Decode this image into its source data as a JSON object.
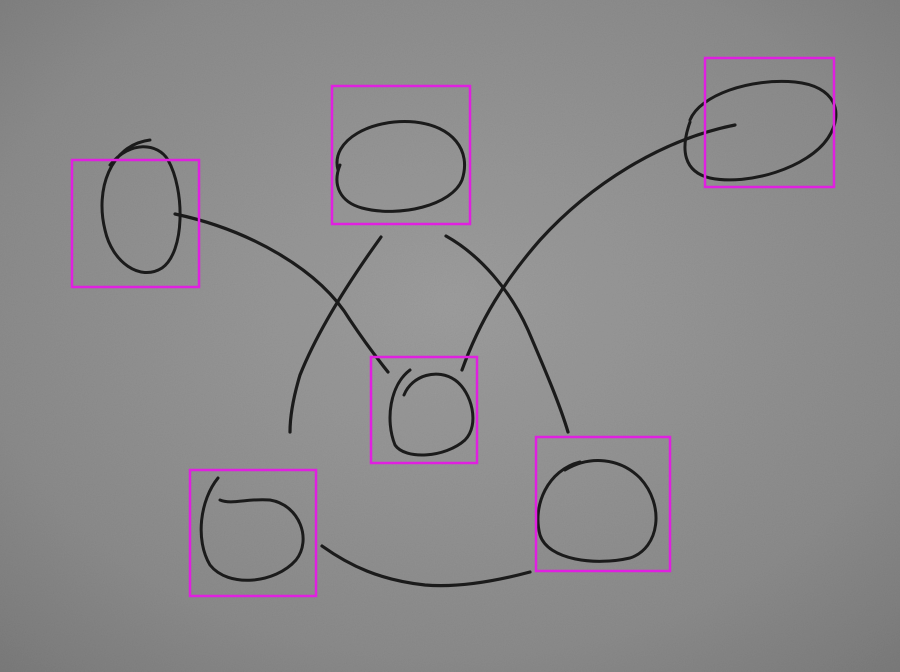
{
  "diagram": {
    "kind": "hand-drawn node sketch",
    "node_count": 6,
    "edge_count": 6
  },
  "colors": {
    "paper": "#8f8f8f",
    "ink": "#1b1b1b",
    "annotation_box": "#e020e0"
  },
  "annotations": {
    "box_label": "",
    "box_count": 6
  },
  "nodes": [
    {
      "id": "n-left",
      "shape": "ellipse"
    },
    {
      "id": "n-top",
      "shape": "ellipse"
    },
    {
      "id": "n-right",
      "shape": "ellipse"
    },
    {
      "id": "n-center",
      "shape": "ellipse"
    },
    {
      "id": "n-bottom-left",
      "shape": "ellipse"
    },
    {
      "id": "n-bottom-right",
      "shape": "ellipse"
    }
  ],
  "edges": [
    {
      "from": "n-left",
      "to": "n-center"
    },
    {
      "from": "n-top",
      "to": "n-bottom-left-area"
    },
    {
      "from": "n-top",
      "to": "n-bottom-right"
    },
    {
      "from": "n-right",
      "to": "n-center"
    },
    {
      "from": "n-bottom-left",
      "to": "n-bottom-right"
    },
    {
      "from": "n-center",
      "to": "n-center"
    }
  ]
}
